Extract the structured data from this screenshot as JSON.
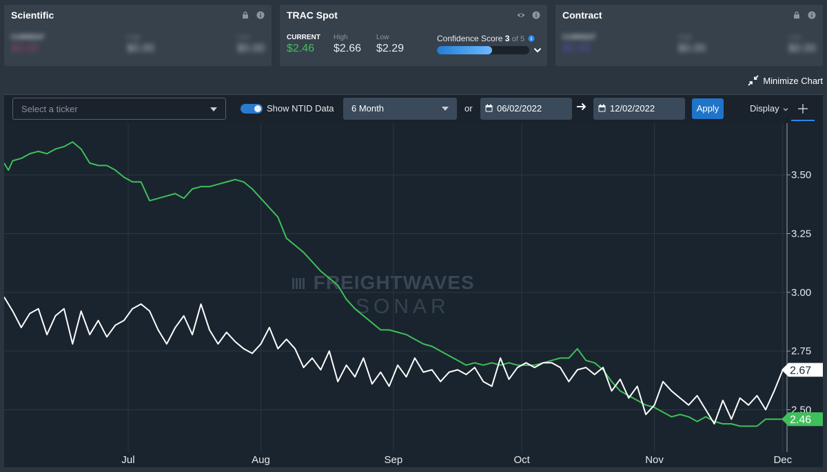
{
  "cards": {
    "scientific": {
      "title": "Scientific",
      "current_label": "CURRENT",
      "current_value": "$0.00",
      "high_label": "High",
      "high_value": "$0.00",
      "low_label": "Low",
      "low_value": "$0.00"
    },
    "trac": {
      "title": "TRAC Spot",
      "current_label": "CURRENT",
      "current_value": "$2.46",
      "high_label": "High",
      "high_value": "$2.66",
      "low_label": "Low",
      "low_value": "$2.29",
      "confidence_label": "Confidence Score",
      "confidence_score": "3",
      "confidence_of": "of 5",
      "confidence_fraction": 0.6
    },
    "contract": {
      "title": "Contract",
      "current_label": "CURRENT",
      "current_value": "$0.00",
      "high_label": "High",
      "high_value": "$0.00",
      "low_label": "Low",
      "low_value": "$0.00"
    }
  },
  "minimize_label": "Minimize Chart",
  "toolbar": {
    "ticker_placeholder": "Select a ticker",
    "ntid_label": "Show NTID Data",
    "ntid_on": true,
    "period": "6 Month",
    "or": "or",
    "start_date": "06/02/2022",
    "end_date": "12/02/2022",
    "apply": "Apply",
    "display": "Display"
  },
  "colors": {
    "green": "#3fc05a",
    "white_series": "#ffffff",
    "accent": "#1f74c8"
  },
  "chart_data": {
    "type": "line",
    "watermark": [
      "FREIGHTWAVES",
      "SONAR"
    ],
    "x_range": [
      "2022-06-02",
      "2022-12-02"
    ],
    "x_ticks": [
      {
        "label": "Jul",
        "date": "2022-07-01"
      },
      {
        "label": "Aug",
        "date": "2022-08-01"
      },
      {
        "label": "Sep",
        "date": "2022-09-01"
      },
      {
        "label": "Oct",
        "date": "2022-10-01"
      },
      {
        "label": "Nov",
        "date": "2022-11-01"
      },
      {
        "label": "Dec",
        "date": "2022-12-01"
      }
    ],
    "y_ticks": [
      "3.50",
      "3.25",
      "3.00",
      "2.75",
      "2.50"
    ],
    "ylim": [
      2.32,
      3.72
    ],
    "grid": true,
    "series": [
      {
        "color": "#3fc05a",
        "last_label": "2.46",
        "points": [
          [
            "2022-06-02",
            3.55
          ],
          [
            "2022-06-03",
            3.52
          ],
          [
            "2022-06-04",
            3.56
          ],
          [
            "2022-06-06",
            3.57
          ],
          [
            "2022-06-08",
            3.59
          ],
          [
            "2022-06-10",
            3.6
          ],
          [
            "2022-06-12",
            3.59
          ],
          [
            "2022-06-14",
            3.61
          ],
          [
            "2022-06-16",
            3.62
          ],
          [
            "2022-06-18",
            3.64
          ],
          [
            "2022-06-20",
            3.61
          ],
          [
            "2022-06-22",
            3.55
          ],
          [
            "2022-06-24",
            3.54
          ],
          [
            "2022-06-26",
            3.54
          ],
          [
            "2022-06-28",
            3.52
          ],
          [
            "2022-06-30",
            3.49
          ],
          [
            "2022-07-02",
            3.47
          ],
          [
            "2022-07-04",
            3.47
          ],
          [
            "2022-07-06",
            3.39
          ],
          [
            "2022-07-08",
            3.4
          ],
          [
            "2022-07-10",
            3.41
          ],
          [
            "2022-07-12",
            3.42
          ],
          [
            "2022-07-14",
            3.4
          ],
          [
            "2022-07-16",
            3.44
          ],
          [
            "2022-07-18",
            3.45
          ],
          [
            "2022-07-20",
            3.45
          ],
          [
            "2022-07-22",
            3.46
          ],
          [
            "2022-07-24",
            3.47
          ],
          [
            "2022-07-26",
            3.48
          ],
          [
            "2022-07-28",
            3.47
          ],
          [
            "2022-07-30",
            3.44
          ],
          [
            "2022-08-01",
            3.4
          ],
          [
            "2022-08-03",
            3.36
          ],
          [
            "2022-08-05",
            3.32
          ],
          [
            "2022-08-07",
            3.23
          ],
          [
            "2022-08-09",
            3.2
          ],
          [
            "2022-08-11",
            3.17
          ],
          [
            "2022-08-13",
            3.13
          ],
          [
            "2022-08-15",
            3.09
          ],
          [
            "2022-08-17",
            3.06
          ],
          [
            "2022-08-19",
            3.03
          ],
          [
            "2022-08-21",
            2.97
          ],
          [
            "2022-08-23",
            2.93
          ],
          [
            "2022-08-25",
            2.9
          ],
          [
            "2022-08-27",
            2.87
          ],
          [
            "2022-08-29",
            2.84
          ],
          [
            "2022-08-31",
            2.84
          ],
          [
            "2022-09-02",
            2.83
          ],
          [
            "2022-09-04",
            2.82
          ],
          [
            "2022-09-06",
            2.8
          ],
          [
            "2022-09-08",
            2.78
          ],
          [
            "2022-09-10",
            2.77
          ],
          [
            "2022-09-12",
            2.75
          ],
          [
            "2022-09-14",
            2.73
          ],
          [
            "2022-09-16",
            2.71
          ],
          [
            "2022-09-18",
            2.69
          ],
          [
            "2022-09-20",
            2.7
          ],
          [
            "2022-09-22",
            2.69
          ],
          [
            "2022-09-24",
            2.7
          ],
          [
            "2022-09-26",
            2.69
          ],
          [
            "2022-09-28",
            2.7
          ],
          [
            "2022-09-30",
            2.69
          ],
          [
            "2022-10-02",
            2.69
          ],
          [
            "2022-10-04",
            2.69
          ],
          [
            "2022-10-06",
            2.7
          ],
          [
            "2022-10-08",
            2.71
          ],
          [
            "2022-10-10",
            2.72
          ],
          [
            "2022-10-12",
            2.72
          ],
          [
            "2022-10-14",
            2.76
          ],
          [
            "2022-10-16",
            2.71
          ],
          [
            "2022-10-18",
            2.7
          ],
          [
            "2022-10-20",
            2.67
          ],
          [
            "2022-10-22",
            2.62
          ],
          [
            "2022-10-24",
            2.58
          ],
          [
            "2022-10-26",
            2.56
          ],
          [
            "2022-10-28",
            2.54
          ],
          [
            "2022-10-30",
            2.52
          ],
          [
            "2022-11-01",
            2.51
          ],
          [
            "2022-11-03",
            2.49
          ],
          [
            "2022-11-05",
            2.47
          ],
          [
            "2022-11-07",
            2.48
          ],
          [
            "2022-11-09",
            2.47
          ],
          [
            "2022-11-11",
            2.45
          ],
          [
            "2022-11-13",
            2.47
          ],
          [
            "2022-11-15",
            2.45
          ],
          [
            "2022-11-17",
            2.44
          ],
          [
            "2022-11-19",
            2.44
          ],
          [
            "2022-11-21",
            2.43
          ],
          [
            "2022-11-23",
            2.43
          ],
          [
            "2022-11-25",
            2.43
          ],
          [
            "2022-11-27",
            2.46
          ],
          [
            "2022-11-29",
            2.46
          ],
          [
            "2022-12-01",
            2.46
          ]
        ]
      },
      {
        "color": "#ffffff",
        "last_label": "2.67",
        "points": [
          [
            "2022-06-02",
            2.98
          ],
          [
            "2022-06-04",
            2.92
          ],
          [
            "2022-06-06",
            2.85
          ],
          [
            "2022-06-08",
            2.91
          ],
          [
            "2022-06-10",
            2.93
          ],
          [
            "2022-06-12",
            2.82
          ],
          [
            "2022-06-14",
            2.9
          ],
          [
            "2022-06-16",
            2.93
          ],
          [
            "2022-06-18",
            2.78
          ],
          [
            "2022-06-20",
            2.92
          ],
          [
            "2022-06-22",
            2.82
          ],
          [
            "2022-06-24",
            2.88
          ],
          [
            "2022-06-26",
            2.81
          ],
          [
            "2022-06-28",
            2.86
          ],
          [
            "2022-06-30",
            2.88
          ],
          [
            "2022-07-02",
            2.93
          ],
          [
            "2022-07-04",
            2.95
          ],
          [
            "2022-07-06",
            2.92
          ],
          [
            "2022-07-08",
            2.84
          ],
          [
            "2022-07-10",
            2.78
          ],
          [
            "2022-07-12",
            2.85
          ],
          [
            "2022-07-14",
            2.9
          ],
          [
            "2022-07-16",
            2.82
          ],
          [
            "2022-07-18",
            2.95
          ],
          [
            "2022-07-20",
            2.84
          ],
          [
            "2022-07-22",
            2.78
          ],
          [
            "2022-07-24",
            2.83
          ],
          [
            "2022-07-26",
            2.79
          ],
          [
            "2022-07-28",
            2.76
          ],
          [
            "2022-07-30",
            2.74
          ],
          [
            "2022-08-01",
            2.78
          ],
          [
            "2022-08-03",
            2.85
          ],
          [
            "2022-08-05",
            2.76
          ],
          [
            "2022-08-07",
            2.8
          ],
          [
            "2022-08-09",
            2.76
          ],
          [
            "2022-08-11",
            2.68
          ],
          [
            "2022-08-13",
            2.72
          ],
          [
            "2022-08-15",
            2.67
          ],
          [
            "2022-08-17",
            2.75
          ],
          [
            "2022-08-19",
            2.62
          ],
          [
            "2022-08-21",
            2.69
          ],
          [
            "2022-08-23",
            2.64
          ],
          [
            "2022-08-25",
            2.72
          ],
          [
            "2022-08-27",
            2.61
          ],
          [
            "2022-08-29",
            2.66
          ],
          [
            "2022-08-31",
            2.6
          ],
          [
            "2022-09-02",
            2.69
          ],
          [
            "2022-09-04",
            2.64
          ],
          [
            "2022-09-06",
            2.72
          ],
          [
            "2022-09-08",
            2.66
          ],
          [
            "2022-09-10",
            2.67
          ],
          [
            "2022-09-12",
            2.62
          ],
          [
            "2022-09-14",
            2.66
          ],
          [
            "2022-09-16",
            2.67
          ],
          [
            "2022-09-18",
            2.65
          ],
          [
            "2022-09-20",
            2.68
          ],
          [
            "2022-09-22",
            2.62
          ],
          [
            "2022-09-24",
            2.6
          ],
          [
            "2022-09-26",
            2.72
          ],
          [
            "2022-09-28",
            2.63
          ],
          [
            "2022-09-30",
            2.68
          ],
          [
            "2022-10-02",
            2.7
          ],
          [
            "2022-10-04",
            2.68
          ],
          [
            "2022-10-06",
            2.7
          ],
          [
            "2022-10-08",
            2.7
          ],
          [
            "2022-10-10",
            2.68
          ],
          [
            "2022-10-12",
            2.62
          ],
          [
            "2022-10-14",
            2.67
          ],
          [
            "2022-10-16",
            2.68
          ],
          [
            "2022-10-18",
            2.65
          ],
          [
            "2022-10-20",
            2.68
          ],
          [
            "2022-10-22",
            2.58
          ],
          [
            "2022-10-24",
            2.63
          ],
          [
            "2022-10-26",
            2.55
          ],
          [
            "2022-10-28",
            2.6
          ],
          [
            "2022-10-30",
            2.48
          ],
          [
            "2022-11-01",
            2.52
          ],
          [
            "2022-11-03",
            2.62
          ],
          [
            "2022-11-05",
            2.58
          ],
          [
            "2022-11-07",
            2.55
          ],
          [
            "2022-11-09",
            2.52
          ],
          [
            "2022-11-11",
            2.56
          ],
          [
            "2022-11-13",
            2.5
          ],
          [
            "2022-11-15",
            2.44
          ],
          [
            "2022-11-17",
            2.54
          ],
          [
            "2022-11-19",
            2.46
          ],
          [
            "2022-11-21",
            2.55
          ],
          [
            "2022-11-23",
            2.52
          ],
          [
            "2022-11-25",
            2.56
          ],
          [
            "2022-11-27",
            2.5
          ],
          [
            "2022-11-29",
            2.58
          ],
          [
            "2022-12-01",
            2.67
          ]
        ]
      }
    ]
  }
}
